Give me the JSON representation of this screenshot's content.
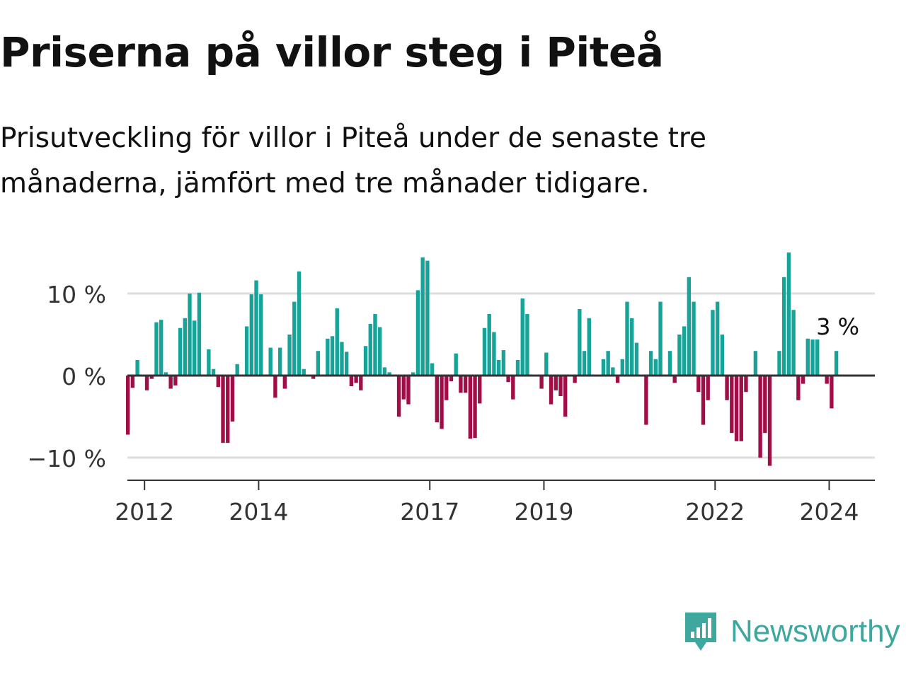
{
  "header": {
    "title": "Priserna på villor steg i Piteå",
    "subtitle": "Prisutveckling för villor i Piteå under de senaste tre månaderna, jämfört med tre månader tidigare."
  },
  "brand": {
    "name": "Newsworthy"
  },
  "colors": {
    "positive": "#16a398",
    "negative": "#a10e47",
    "grid": "#dddddd",
    "axis": "#333333",
    "logo": "#3fa89e"
  },
  "chart_data": {
    "type": "bar",
    "title": "Priserna på villor steg i Piteå",
    "subtitle": "Prisutveckling för villor i Piteå under de senaste tre månaderna, jämfört med tre månader tidigare.",
    "xlabel": "",
    "ylabel": "",
    "x_start": {
      "year": 2011,
      "month": 9
    },
    "x_range": [
      2011.7,
      2024.8
    ],
    "ylim": [
      -12.5,
      15.5
    ],
    "grid": true,
    "y_ticks": [
      {
        "value": 10,
        "label": "10 %"
      },
      {
        "value": 0,
        "label": "0 %"
      },
      {
        "value": -10,
        "label": "−10 %"
      }
    ],
    "x_ticks": [
      {
        "value": 2012.0,
        "label": "2012"
      },
      {
        "value": 2014.0,
        "label": "2014"
      },
      {
        "value": 2017.0,
        "label": "2017"
      },
      {
        "value": 2019.0,
        "label": "2019"
      },
      {
        "value": 2022.0,
        "label": "2022"
      },
      {
        "value": 2024.0,
        "label": "2024"
      }
    ],
    "values": [
      -7.2,
      -1.5,
      1.9,
      0,
      -1.8,
      -0.4,
      6.5,
      6.8,
      0.4,
      -1.6,
      -1.2,
      5.8,
      7.0,
      10.0,
      6.7,
      10.1,
      0,
      3.2,
      0.8,
      -1.4,
      -8.2,
      -8.2,
      -5.6,
      1.4,
      0,
      6.0,
      9.9,
      11.6,
      9.9,
      0,
      3.4,
      -2.7,
      3.4,
      -1.6,
      5.0,
      9.0,
      12.7,
      0.8,
      0,
      -0.4,
      3.0,
      0,
      4.5,
      4.8,
      8.2,
      4.1,
      2.9,
      -1.3,
      -0.9,
      -1.8,
      3.6,
      6.3,
      7.5,
      5.9,
      1.0,
      0.4,
      0,
      -5.0,
      -2.9,
      -3.5,
      0.4,
      10.4,
      14.4,
      14.0,
      1.5,
      -5.7,
      -6.5,
      -3.0,
      -0.7,
      2.7,
      -2.1,
      -2.1,
      -7.7,
      -7.6,
      -3.4,
      5.8,
      7.5,
      5.3,
      1.9,
      3.1,
      -0.8,
      -2.9,
      1.9,
      9.4,
      7.5,
      0,
      0,
      -1.6,
      2.8,
      -3.5,
      -1.8,
      -2.5,
      -5.0,
      0,
      -0.9,
      8.1,
      3.0,
      7.0,
      0,
      0,
      2.0,
      3.0,
      1.0,
      -0.9,
      2.0,
      9.0,
      7.0,
      4.0,
      0,
      -6.0,
      3.0,
      2.0,
      9.0,
      0,
      3.0,
      -0.9,
      5.0,
      6.0,
      12.0,
      9.0,
      -2.0,
      -6.0,
      -3.0,
      8.0,
      9.0,
      5.0,
      -3.0,
      -7.0,
      -8.0,
      -8.0,
      -2.0,
      0,
      3.0,
      -10.0,
      -7.0,
      -11.0,
      0,
      3.0,
      12.0,
      15.0,
      8.0,
      -3.0,
      -1.0,
      4.5,
      4.4,
      4.4,
      0,
      -1.0,
      -4.0,
      3.0
    ],
    "annotation": {
      "label": "3 %"
    }
  }
}
